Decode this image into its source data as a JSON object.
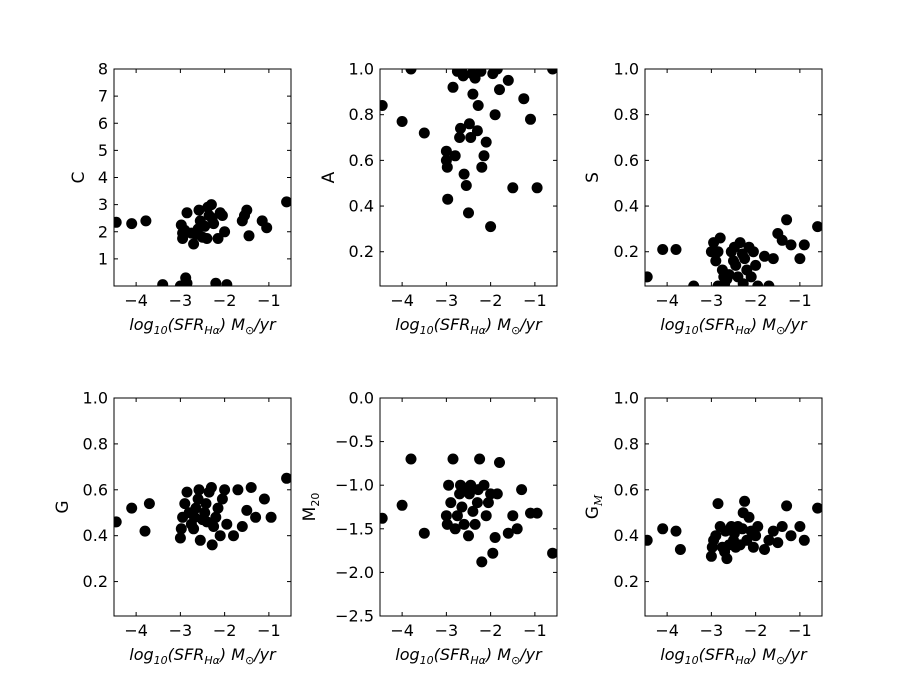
{
  "chart_data": [
    {
      "type": "scatter",
      "ylabel": "C",
      "xlabel": "log10(SFR_Hα) M_⊙/yr",
      "xlim": [
        -4.5,
        -0.5
      ],
      "ylim": [
        0,
        8
      ],
      "xticks": [
        "−4",
        "−3",
        "−2",
        "−1"
      ],
      "yticks": [
        "1",
        "2",
        "3",
        "4",
        "5",
        "6",
        "7",
        "8"
      ],
      "points": [
        [
          -4.45,
          2.35
        ],
        [
          -4.1,
          2.3
        ],
        [
          -3.78,
          2.4
        ],
        [
          -3.4,
          0.05
        ],
        [
          -2.98,
          2.25
        ],
        [
          -2.95,
          1.95
        ],
        [
          -2.88,
          0.3
        ],
        [
          -2.9,
          2.05
        ],
        [
          -2.85,
          2.7
        ],
        [
          -2.75,
          1.95
        ],
        [
          -2.7,
          1.55
        ],
        [
          -2.65,
          1.9
        ],
        [
          -2.6,
          2.1
        ],
        [
          -2.58,
          2.8
        ],
        [
          -2.55,
          2.4
        ],
        [
          -2.5,
          1.8
        ],
        [
          -2.45,
          2.2
        ],
        [
          -2.4,
          1.75
        ],
        [
          -2.38,
          2.9
        ],
        [
          -2.35,
          2.6
        ],
        [
          -2.3,
          3.0
        ],
        [
          -2.28,
          2.5
        ],
        [
          -2.25,
          2.3
        ],
        [
          -2.2,
          0.1
        ],
        [
          -2.15,
          1.75
        ],
        [
          -2.1,
          2.7
        ],
        [
          -2.05,
          2.6
        ],
        [
          -2.0,
          2.0
        ],
        [
          -1.95,
          0.05
        ],
        [
          -1.6,
          2.4
        ],
        [
          -1.55,
          2.6
        ],
        [
          -1.45,
          1.85
        ],
        [
          -1.5,
          2.8
        ],
        [
          -1.15,
          2.4
        ],
        [
          -1.05,
          2.15
        ],
        [
          -0.6,
          3.1
        ],
        [
          -2.9,
          0.05
        ],
        [
          -2.95,
          1.75
        ],
        [
          -2.85,
          0.1
        ],
        [
          -3.0,
          0.0
        ]
      ]
    },
    {
      "type": "scatter",
      "ylabel": "A",
      "xlabel": "log10(SFR_Hα) M_⊙/yr",
      "xlim": [
        -4.5,
        -0.5
      ],
      "ylim": [
        0.05,
        1.0
      ],
      "xticks": [
        "−4",
        "−3",
        "−2",
        "−1"
      ],
      "yticks": [
        "0.2",
        "0.4",
        "0.6",
        "0.8",
        "1.0"
      ],
      "points": [
        [
          -4.45,
          0.84
        ],
        [
          -4.0,
          0.77
        ],
        [
          -3.8,
          1.0
        ],
        [
          -3.5,
          0.72
        ],
        [
          -3.0,
          0.64
        ],
        [
          -3.0,
          0.6
        ],
        [
          -2.98,
          0.57
        ],
        [
          -2.97,
          0.43
        ],
        [
          -2.85,
          0.92
        ],
        [
          -2.8,
          0.62
        ],
        [
          -2.75,
          0.99
        ],
        [
          -2.7,
          0.7
        ],
        [
          -2.68,
          0.74
        ],
        [
          -2.62,
          0.97
        ],
        [
          -2.6,
          0.54
        ],
        [
          -2.55,
          0.49
        ],
        [
          -2.5,
          0.37
        ],
        [
          -2.48,
          0.76
        ],
        [
          -2.45,
          0.7
        ],
        [
          -2.42,
          0.98
        ],
        [
          -2.4,
          0.89
        ],
        [
          -2.35,
          0.96
        ],
        [
          -2.3,
          0.73
        ],
        [
          -2.28,
          0.84
        ],
        [
          -2.22,
          0.99
        ],
        [
          -2.2,
          0.57
        ],
        [
          -2.15,
          0.62
        ],
        [
          -2.1,
          0.68
        ],
        [
          -2.0,
          0.31
        ],
        [
          -1.95,
          0.98
        ],
        [
          -1.9,
          0.8
        ],
        [
          -1.85,
          1.0
        ],
        [
          -1.8,
          0.91
        ],
        [
          -1.6,
          0.95
        ],
        [
          -1.5,
          0.48
        ],
        [
          -1.25,
          0.87
        ],
        [
          -1.1,
          0.78
        ],
        [
          -0.95,
          0.48
        ],
        [
          -0.6,
          1.0
        ],
        [
          -2.65,
          0.99
        ]
      ]
    },
    {
      "type": "scatter",
      "ylabel": "S",
      "xlabel": "log10(SFR_Hα) M_⊙/yr",
      "xlim": [
        -4.5,
        -0.5
      ],
      "ylim": [
        0.05,
        1.0
      ],
      "xticks": [
        "−4",
        "−3",
        "−2",
        "−1"
      ],
      "yticks": [
        "0.2",
        "0.4",
        "0.6",
        "0.8",
        "1.0"
      ],
      "points": [
        [
          -4.45,
          0.09
        ],
        [
          -4.1,
          0.21
        ],
        [
          -3.8,
          0.21
        ],
        [
          -3.4,
          0.05
        ],
        [
          -3.0,
          0.2
        ],
        [
          -2.95,
          0.24
        ],
        [
          -2.9,
          0.16
        ],
        [
          -2.85,
          0.2
        ],
        [
          -2.8,
          0.26
        ],
        [
          -2.75,
          0.12
        ],
        [
          -2.72,
          0.09
        ],
        [
          -2.7,
          0.06
        ],
        [
          -2.65,
          0.08
        ],
        [
          -2.6,
          0.1
        ],
        [
          -2.55,
          0.2
        ],
        [
          -2.5,
          0.16
        ],
        [
          -2.48,
          0.22
        ],
        [
          -2.45,
          0.14
        ],
        [
          -2.4,
          0.09
        ],
        [
          -2.35,
          0.24
        ],
        [
          -2.3,
          0.19
        ],
        [
          -2.28,
          0.06
        ],
        [
          -2.25,
          0.17
        ],
        [
          -2.2,
          0.12
        ],
        [
          -2.15,
          0.22
        ],
        [
          -2.1,
          0.09
        ],
        [
          -2.05,
          0.2
        ],
        [
          -2.0,
          0.14
        ],
        [
          -1.95,
          0.05
        ],
        [
          -1.8,
          0.18
        ],
        [
          -1.6,
          0.17
        ],
        [
          -1.5,
          0.28
        ],
        [
          -1.4,
          0.25
        ],
        [
          -1.3,
          0.34
        ],
        [
          -1.2,
          0.23
        ],
        [
          -1.0,
          0.17
        ],
        [
          -0.9,
          0.23
        ],
        [
          -0.6,
          0.31
        ],
        [
          -1.7,
          0.05
        ],
        [
          -2.85,
          0.05
        ]
      ]
    },
    {
      "type": "scatter",
      "ylabel": "G",
      "xlabel": "log10(SFR_Hα) M_⊙/yr",
      "xlim": [
        -4.5,
        -0.5
      ],
      "ylim": [
        0.05,
        1.0
      ],
      "xticks": [
        "−4",
        "−3",
        "−2",
        "−1"
      ],
      "yticks": [
        "0.2",
        "0.4",
        "0.6",
        "0.8",
        "1.0"
      ],
      "points": [
        [
          -4.45,
          0.46
        ],
        [
          -4.1,
          0.52
        ],
        [
          -3.8,
          0.42
        ],
        [
          -3.7,
          0.54
        ],
        [
          -3.0,
          0.39
        ],
        [
          -2.98,
          0.43
        ],
        [
          -2.95,
          0.48
        ],
        [
          -2.9,
          0.54
        ],
        [
          -2.85,
          0.59
        ],
        [
          -2.8,
          0.5
        ],
        [
          -2.75,
          0.45
        ],
        [
          -2.7,
          0.43
        ],
        [
          -2.68,
          0.48
        ],
        [
          -2.65,
          0.52
        ],
        [
          -2.6,
          0.56
        ],
        [
          -2.58,
          0.6
        ],
        [
          -2.55,
          0.38
        ],
        [
          -2.5,
          0.47
        ],
        [
          -2.45,
          0.5
        ],
        [
          -2.42,
          0.54
        ],
        [
          -2.4,
          0.46
        ],
        [
          -2.35,
          0.59
        ],
        [
          -2.3,
          0.61
        ],
        [
          -2.28,
          0.36
        ],
        [
          -2.25,
          0.44
        ],
        [
          -2.2,
          0.48
        ],
        [
          -2.15,
          0.52
        ],
        [
          -2.1,
          0.4
        ],
        [
          -2.05,
          0.56
        ],
        [
          -2.0,
          0.6
        ],
        [
          -1.95,
          0.45
        ],
        [
          -1.8,
          0.4
        ],
        [
          -1.7,
          0.6
        ],
        [
          -1.6,
          0.44
        ],
        [
          -1.5,
          0.51
        ],
        [
          -1.4,
          0.61
        ],
        [
          -1.3,
          0.48
        ],
        [
          -1.1,
          0.56
        ],
        [
          -0.95,
          0.48
        ],
        [
          -0.6,
          0.65
        ]
      ]
    },
    {
      "type": "scatter",
      "ylabel": "M20",
      "xlabel": "log10(SFR_Hα) M_⊙/yr",
      "xlim": [
        -4.5,
        -0.5
      ],
      "ylim": [
        -2.5,
        0.0
      ],
      "xticks": [
        "−4",
        "−3",
        "−2",
        "−1"
      ],
      "yticks": [
        "0.0",
        "−0.5",
        "−1.0",
        "−1.5",
        "−2.0",
        "−2.5"
      ],
      "points": [
        [
          -4.45,
          -1.38
        ],
        [
          -4.0,
          -1.23
        ],
        [
          -3.8,
          -0.7
        ],
        [
          -3.5,
          -1.55
        ],
        [
          -3.0,
          -1.35
        ],
        [
          -2.98,
          -1.45
        ],
        [
          -2.95,
          -1.0
        ],
        [
          -2.9,
          -1.2
        ],
        [
          -2.85,
          -0.7
        ],
        [
          -2.8,
          -1.5
        ],
        [
          -2.75,
          -1.35
        ],
        [
          -2.7,
          -1.1
        ],
        [
          -2.68,
          -1.0
        ],
        [
          -2.65,
          -1.25
        ],
        [
          -2.6,
          -1.45
        ],
        [
          -2.55,
          -1.05
        ],
        [
          -2.5,
          -1.58
        ],
        [
          -2.48,
          -1.1
        ],
        [
          -2.45,
          -1.0
        ],
        [
          -2.4,
          -1.3
        ],
        [
          -2.35,
          -1.45
        ],
        [
          -2.3,
          -1.2
        ],
        [
          -2.28,
          -1.05
        ],
        [
          -2.25,
          -0.7
        ],
        [
          -2.2,
          -1.88
        ],
        [
          -2.15,
          -1.0
        ],
        [
          -2.1,
          -1.35
        ],
        [
          -2.05,
          -1.2
        ],
        [
          -2.0,
          -1.1
        ],
        [
          -1.95,
          -1.78
        ],
        [
          -1.9,
          -1.6
        ],
        [
          -1.85,
          -1.1
        ],
        [
          -1.8,
          -0.74
        ],
        [
          -1.6,
          -1.55
        ],
        [
          -1.5,
          -1.35
        ],
        [
          -1.4,
          -1.5
        ],
        [
          -1.3,
          -1.05
        ],
        [
          -1.1,
          -1.32
        ],
        [
          -0.95,
          -1.32
        ],
        [
          -0.6,
          -1.78
        ]
      ]
    },
    {
      "type": "scatter",
      "ylabel": "G_M",
      "xlabel": "log10(SFR_Hα) M_⊙/yr",
      "xlim": [
        -4.5,
        -0.5
      ],
      "ylim": [
        0.05,
        1.0
      ],
      "xticks": [
        "−4",
        "−3",
        "−2",
        "−1"
      ],
      "yticks": [
        "0.2",
        "0.4",
        "0.6",
        "0.8",
        "1.0"
      ],
      "points": [
        [
          -4.45,
          0.38
        ],
        [
          -4.1,
          0.43
        ],
        [
          -3.8,
          0.42
        ],
        [
          -3.7,
          0.34
        ],
        [
          -3.0,
          0.31
        ],
        [
          -2.98,
          0.35
        ],
        [
          -2.95,
          0.38
        ],
        [
          -2.9,
          0.4
        ],
        [
          -2.85,
          0.54
        ],
        [
          -2.8,
          0.44
        ],
        [
          -2.75,
          0.35
        ],
        [
          -2.7,
          0.33
        ],
        [
          -2.68,
          0.42
        ],
        [
          -2.65,
          0.3
        ],
        [
          -2.6,
          0.36
        ],
        [
          -2.55,
          0.44
        ],
        [
          -2.5,
          0.38
        ],
        [
          -2.48,
          0.41
        ],
        [
          -2.45,
          0.35
        ],
        [
          -2.4,
          0.44
        ],
        [
          -2.35,
          0.36
        ],
        [
          -2.3,
          0.43
        ],
        [
          -2.28,
          0.5
        ],
        [
          -2.25,
          0.55
        ],
        [
          -2.2,
          0.38
        ],
        [
          -2.15,
          0.48
        ],
        [
          -2.1,
          0.42
        ],
        [
          -2.05,
          0.35
        ],
        [
          -2.0,
          0.4
        ],
        [
          -1.95,
          0.44
        ],
        [
          -1.8,
          0.34
        ],
        [
          -1.7,
          0.38
        ],
        [
          -1.6,
          0.42
        ],
        [
          -1.5,
          0.37
        ],
        [
          -1.4,
          0.44
        ],
        [
          -1.3,
          0.53
        ],
        [
          -1.2,
          0.4
        ],
        [
          -1.0,
          0.44
        ],
        [
          -0.9,
          0.38
        ],
        [
          -0.6,
          0.52
        ]
      ]
    }
  ]
}
